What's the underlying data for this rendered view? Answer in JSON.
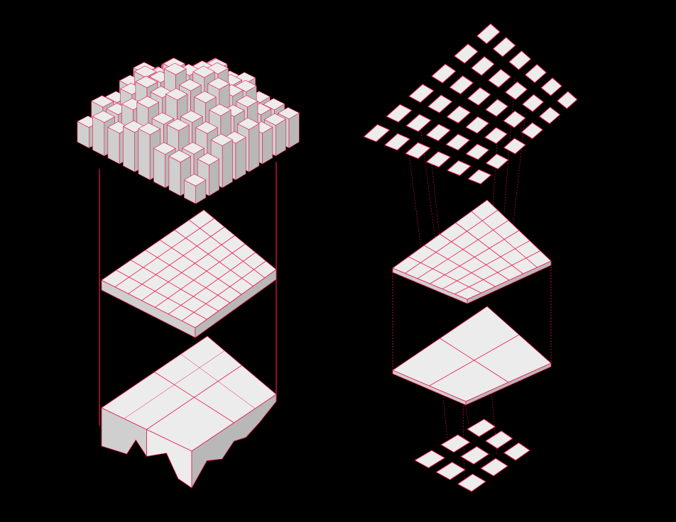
{
  "colors": {
    "background": "#000000",
    "surface": "#ececec",
    "surface_shade": "#cfcfcf",
    "surface_dark": "#b8b8b8",
    "accent_line": "#e8174d"
  },
  "diagram": {
    "left_column": {
      "layers": [
        "prism-array",
        "grid-plate",
        "faceted-block"
      ],
      "prism_grid": [
        8,
        8
      ],
      "plate_grid": [
        7,
        7
      ],
      "block_grid": [
        2,
        2
      ]
    },
    "right_column": {
      "layers": [
        "tile-array",
        "gridded-slab",
        "quartered-slab",
        "small-tile-array"
      ],
      "tile_grid": [
        6,
        6
      ],
      "slab_grid": [
        6,
        6
      ],
      "quartered_grid": [
        2,
        2
      ],
      "small_tile_grid": [
        3,
        3
      ]
    }
  }
}
